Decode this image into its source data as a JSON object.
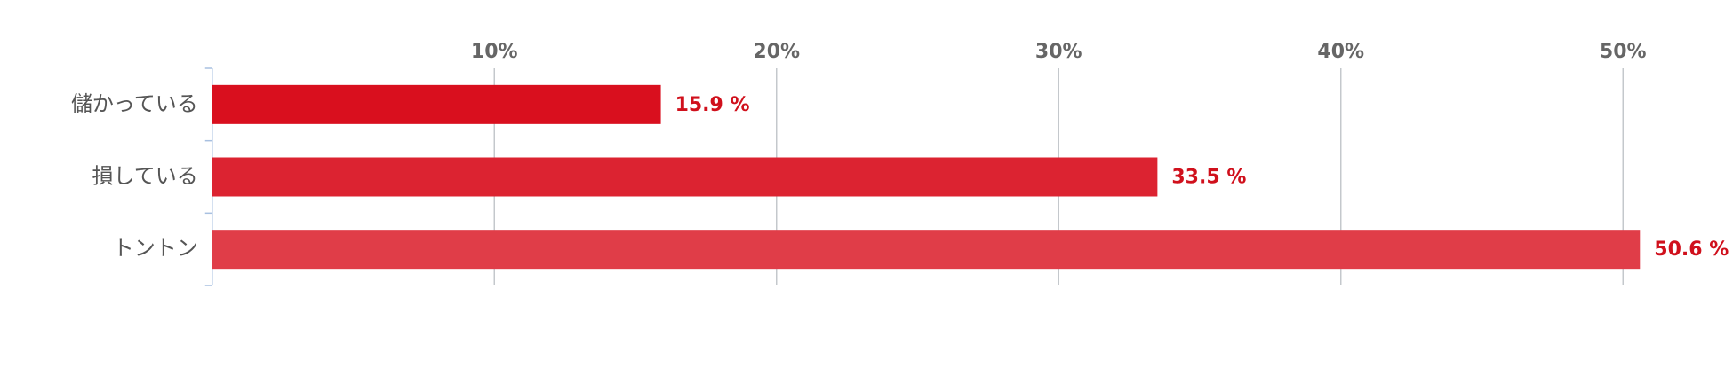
{
  "chart_data": {
    "type": "bar",
    "orientation": "horizontal",
    "categories": [
      "儲かっている",
      "損している",
      "トントン"
    ],
    "values": [
      15.9,
      33.5,
      50.6
    ],
    "value_labels": [
      "15.9 %",
      "33.5 %",
      "50.6 %"
    ],
    "colors": [
      "#d90f1e",
      "#dc2331",
      "#e03d48"
    ],
    "xlim": [
      0,
      52
    ],
    "xticks": [
      {
        "value": 10,
        "label": "10%"
      },
      {
        "value": 20,
        "label": "20%"
      },
      {
        "value": 30,
        "label": "30%"
      },
      {
        "value": 40,
        "label": "40%"
      },
      {
        "value": 50,
        "label": "50%"
      }
    ],
    "grid": true
  }
}
